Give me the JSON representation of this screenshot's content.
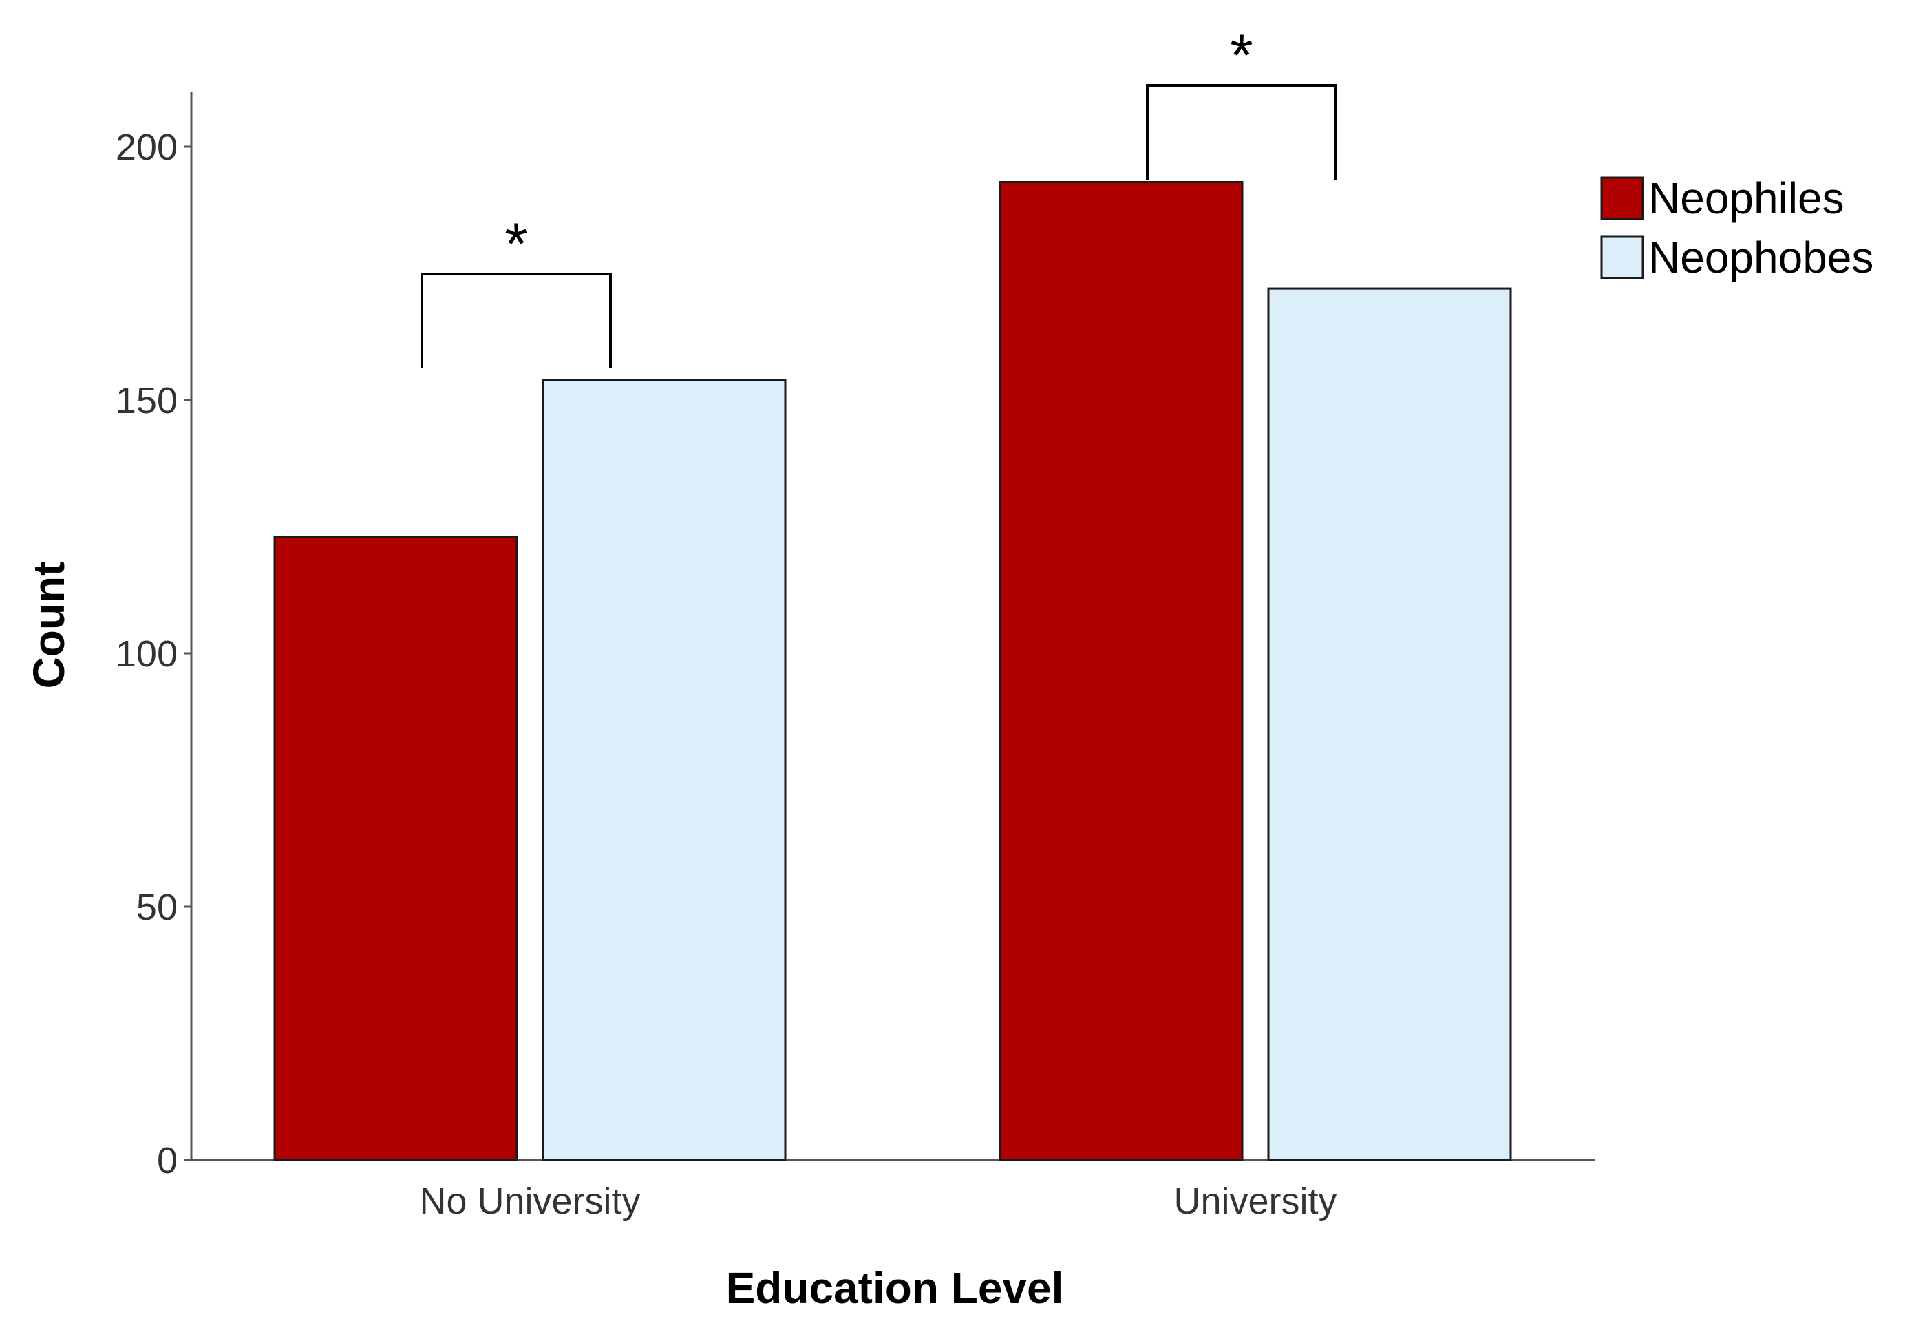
{
  "chart_data": {
    "type": "bar",
    "title": "",
    "xlabel": "Education Level",
    "ylabel": "Count",
    "categories": [
      "No University",
      "University"
    ],
    "series": [
      {
        "name": "Neophiles",
        "color": "#b00000",
        "values": [
          123,
          193
        ]
      },
      {
        "name": "Neophobes",
        "color": "#ddeefb",
        "values": [
          154,
          172
        ]
      }
    ],
    "ylim": [
      0,
      210
    ],
    "yticks": [
      0,
      50,
      100,
      150,
      200
    ],
    "grid": false,
    "legend_position": "top-right",
    "significance": [
      {
        "category": "No University",
        "label": "*"
      },
      {
        "category": "University",
        "label": "*"
      }
    ]
  }
}
